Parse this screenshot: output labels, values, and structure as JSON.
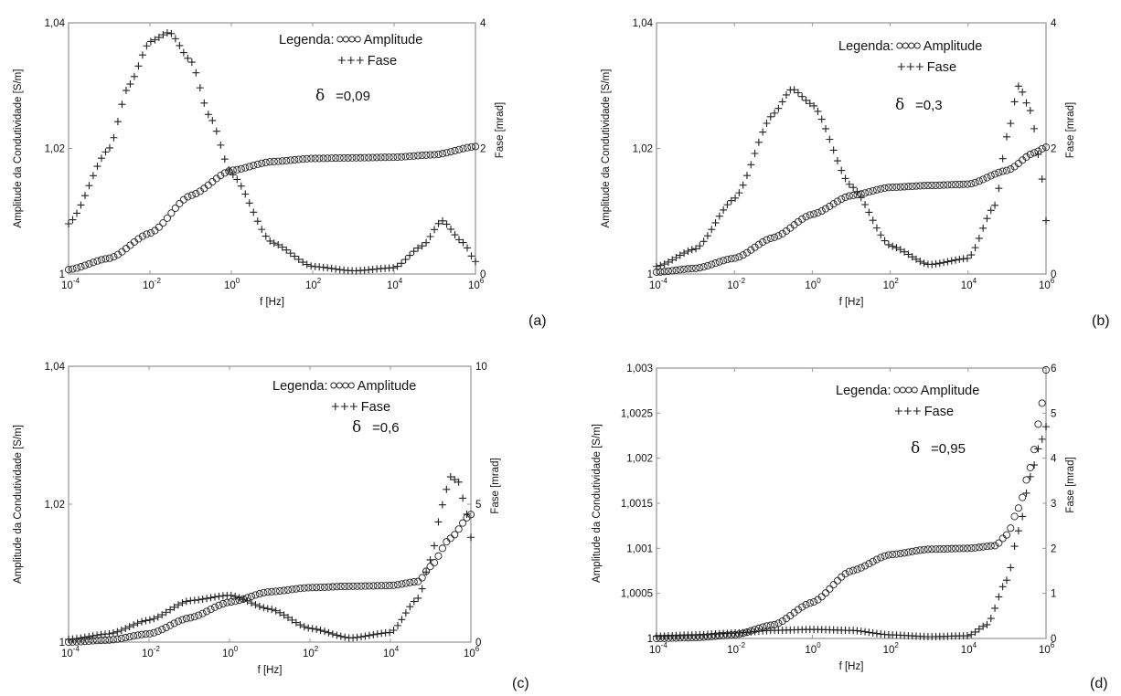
{
  "chart_data": [
    {
      "type": "scatter",
      "panel_label": "(a)",
      "xlabel": "f [Hz]",
      "ylabel_left": "Amplitude da Condutividade [S/m]",
      "ylabel_right": "Fase  [mrad]",
      "x_scale": "log",
      "xlim": [
        0.0001,
        1000000
      ],
      "x_ticks": [
        "-4",
        "-2",
        "0",
        "2",
        "4",
        "6"
      ],
      "ylim_left": [
        1,
        1.04
      ],
      "y_ticks_left": [
        "1",
        "1,02",
        "1,04"
      ],
      "ylim_right": [
        0,
        4
      ],
      "y_ticks_right": [
        "0",
        "2",
        "4"
      ],
      "legend": {
        "title": "Legenda:",
        "amplitude": "Amplitude",
        "fase": "Fase",
        "placement": "top-right"
      },
      "delta_symbol": "δ",
      "delta_text": "=0,09",
      "series": [
        {
          "name": "Amplitude",
          "marker": "o",
          "axis": "left",
          "x": [
            0.0001,
            0.001,
            0.01,
            0.1,
            1,
            10,
            100,
            1000,
            10000,
            100000,
            1000000
          ],
          "y": [
            1.0007,
            1.0025,
            1.0065,
            1.0125,
            1.0165,
            1.0179,
            1.0184,
            1.0185,
            1.0186,
            1.019,
            1.0203
          ]
        },
        {
          "name": "Fase",
          "marker": "+",
          "axis": "right",
          "x": [
            0.0001,
            0.001,
            0.003,
            0.01,
            0.03,
            0.1,
            0.3,
            1,
            10,
            100,
            1000,
            10000,
            50000,
            150000,
            500000,
            1000000
          ],
          "y": [
            0.8,
            2.0,
            3.0,
            3.7,
            3.85,
            3.4,
            2.5,
            1.6,
            0.5,
            0.12,
            0.05,
            0.1,
            0.45,
            0.85,
            0.5,
            0.2
          ]
        }
      ]
    },
    {
      "type": "scatter",
      "panel_label": "(b)",
      "xlabel": "f [Hz]",
      "ylabel_left": "Amplitude da Condutividade [S/m]",
      "ylabel_right": "Fase  [mrad]",
      "x_scale": "log",
      "xlim": [
        0.0001,
        1000000
      ],
      "x_ticks": [
        "-4",
        "-2",
        "0",
        "2",
        "4",
        "6"
      ],
      "ylim_left": [
        1,
        1.04
      ],
      "y_ticks_left": [
        "1",
        "1,02",
        "1,04"
      ],
      "ylim_right": [
        0,
        4
      ],
      "y_ticks_right": [
        "0",
        "2",
        "4"
      ],
      "legend": {
        "title": "Legenda:",
        "amplitude": "Amplitude",
        "fase": "Fase",
        "placement": "top-right"
      },
      "delta_symbol": "δ",
      "delta_text": "=0,3",
      "series": [
        {
          "name": "Amplitude",
          "marker": "o",
          "axis": "left",
          "x": [
            0.0001,
            0.001,
            0.01,
            0.1,
            1,
            10,
            100,
            1000,
            10000,
            100000,
            500000,
            1000000
          ],
          "y": [
            1.0003,
            1.0009,
            1.0025,
            1.0058,
            1.0095,
            1.0125,
            1.0138,
            1.0141,
            1.0143,
            1.0165,
            1.0193,
            1.0202
          ]
        },
        {
          "name": "Fase",
          "marker": "+",
          "axis": "right",
          "x": [
            0.0001,
            0.001,
            0.01,
            0.1,
            0.3,
            1,
            10,
            100,
            1000,
            10000,
            50000,
            100000,
            200000,
            400000,
            700000,
            1000000
          ],
          "y": [
            0.12,
            0.4,
            1.2,
            2.55,
            2.95,
            2.7,
            1.4,
            0.45,
            0.15,
            0.25,
            1.1,
            2.2,
            3.0,
            2.6,
            1.8,
            0.85
          ]
        }
      ]
    },
    {
      "type": "scatter",
      "panel_label": "(c)",
      "xlabel": "f [Hz]",
      "ylabel_left": "Amplitude da Condutividade [S/m]",
      "ylabel_right": "Fase  [mrad]",
      "x_scale": "log",
      "xlim": [
        0.0001,
        1000000
      ],
      "x_ticks": [
        "-4",
        "-2",
        "0",
        "2",
        "4",
        "6"
      ],
      "ylim_left": [
        1,
        1.04
      ],
      "y_ticks_left": [
        "1",
        "1,02",
        "1,04"
      ],
      "ylim_right": [
        0,
        10
      ],
      "y_ticks_right": [
        "0",
        "5",
        "10"
      ],
      "legend": {
        "title": "Legenda:",
        "amplitude": "Amplitude",
        "fase": "Fase",
        "placement": "top-right"
      },
      "delta_symbol": "δ",
      "delta_text": "=0,6",
      "series": [
        {
          "name": "Amplitude",
          "marker": "o",
          "axis": "left",
          "x": [
            0.0001,
            0.001,
            0.01,
            0.1,
            1,
            10,
            100,
            1000,
            10000,
            50000,
            100000,
            300000,
            1000000
          ],
          "y": [
            1.0,
            1.0003,
            1.0012,
            1.0035,
            1.0058,
            1.0073,
            1.0079,
            1.0081,
            1.0082,
            1.0088,
            1.011,
            1.015,
            1.0185
          ]
        },
        {
          "name": "Fase",
          "marker": "+",
          "axis": "right",
          "x": [
            0.0001,
            0.001,
            0.01,
            0.1,
            1,
            10,
            100,
            1000,
            10000,
            50000,
            100000,
            200000,
            300000,
            500000,
            700000,
            1000000
          ],
          "y": [
            0.1,
            0.3,
            0.8,
            1.5,
            1.7,
            1.2,
            0.5,
            0.15,
            0.35,
            1.6,
            3.0,
            5.0,
            6.0,
            5.8,
            5.0,
            3.8
          ]
        }
      ]
    },
    {
      "type": "scatter",
      "panel_label": "(d)",
      "xlabel": "f [Hz]",
      "ylabel_left": "Amplitude da Condutividade [S/m]",
      "ylabel_right": "Fase  [mrad]",
      "x_scale": "log",
      "xlim": [
        0.0001,
        1000000
      ],
      "x_ticks": [
        "-4",
        "-2",
        "0",
        "2",
        "4",
        "6"
      ],
      "ylim_left": [
        1,
        1.003
      ],
      "y_ticks_left": [
        "1",
        "1,0005",
        "1,001",
        "1,0015",
        "1,002",
        "1,0025",
        "1,003"
      ],
      "ylim_right": [
        0,
        6
      ],
      "y_ticks_right": [
        "0",
        "1",
        "2",
        "3",
        "4",
        "5",
        "6"
      ],
      "legend": {
        "title": "Legenda:",
        "amplitude": "Amplitude",
        "fase": "Fase",
        "placement": "top-right"
      },
      "delta_symbol": "δ",
      "delta_text": "=0,95",
      "series": [
        {
          "name": "Amplitude",
          "marker": "o",
          "axis": "left",
          "x": [
            0.0001,
            0.001,
            0.01,
            0.1,
            1,
            10,
            100,
            1000,
            10000,
            50000,
            100000,
            200000,
            400000,
            700000,
            1000000
          ],
          "y": [
            1.0,
            1.00001,
            1.00004,
            1.00015,
            1.0004,
            1.00075,
            1.00093,
            1.00099,
            1.001,
            1.00103,
            1.00115,
            1.00145,
            1.0019,
            1.00245,
            1.00298
          ]
        },
        {
          "name": "Fase",
          "marker": "+",
          "axis": "right",
          "x": [
            0.0001,
            0.001,
            0.01,
            0.1,
            1,
            10,
            100,
            1000,
            10000,
            30000,
            100000,
            200000,
            400000,
            700000,
            1000000
          ],
          "y": [
            0.05,
            0.08,
            0.12,
            0.18,
            0.2,
            0.18,
            0.08,
            0.04,
            0.06,
            0.3,
            1.3,
            2.4,
            3.6,
            4.3,
            4.7
          ]
        }
      ]
    }
  ]
}
